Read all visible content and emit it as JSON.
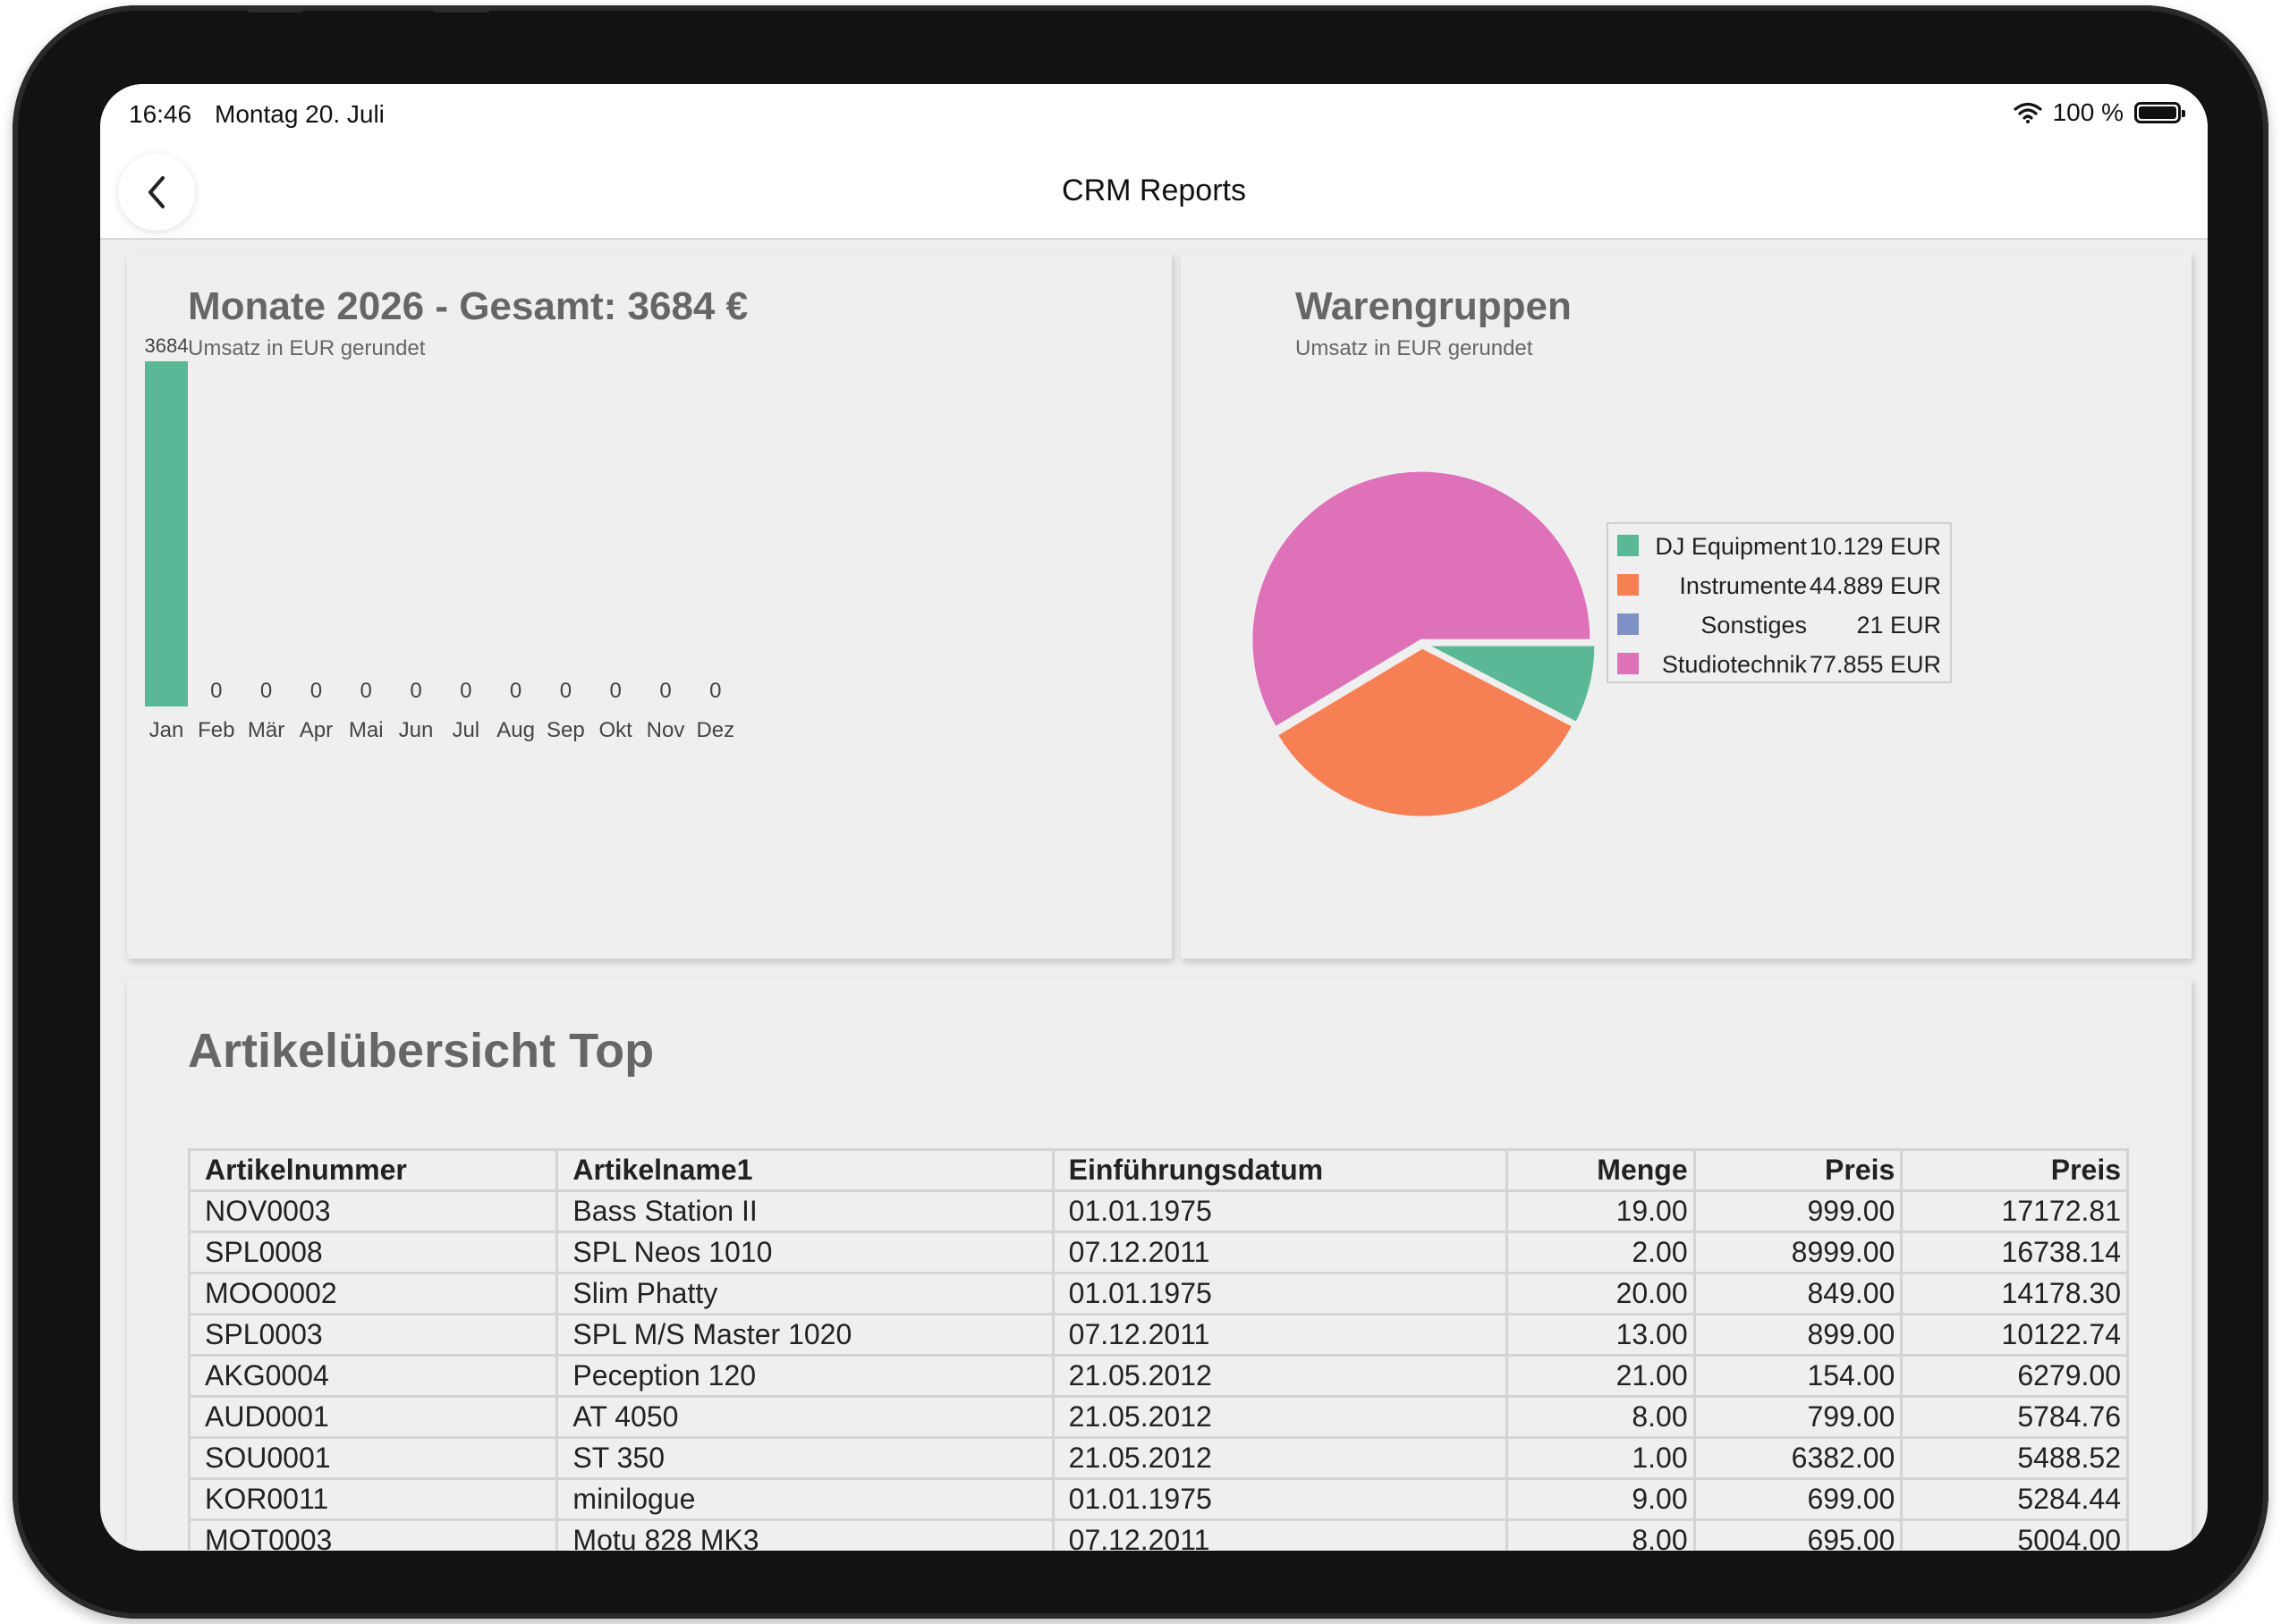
{
  "status_bar": {
    "time": "16:46",
    "date": "Montag 20. Juli",
    "battery": "100 %"
  },
  "nav": {
    "title": "CRM Reports",
    "back_icon": "chevron-left-icon"
  },
  "monthly_card": {
    "title": "Monate 2026 - Gesamt: 3684 €",
    "subtitle": "Umsatz in EUR gerundet"
  },
  "categories_card": {
    "title": "Warengruppen",
    "subtitle": "Umsatz in EUR gerundet"
  },
  "chart_data": [
    {
      "type": "bar",
      "title": "Monate 2026 - Gesamt: 3684 €",
      "subtitle": "Umsatz in EUR gerundet",
      "categories": [
        "Jan",
        "Feb",
        "Mär",
        "Apr",
        "Mai",
        "Jun",
        "Jul",
        "Aug",
        "Sep",
        "Okt",
        "Nov",
        "Dez"
      ],
      "values": [
        3684,
        0,
        0,
        0,
        0,
        0,
        0,
        0,
        0,
        0,
        0,
        0
      ],
      "data_labels": [
        "3684",
        "0",
        "0",
        "0",
        "0",
        "0",
        "0",
        "0",
        "0",
        "0",
        "0",
        "0"
      ],
      "color": "#5ab896",
      "ylim": [
        0,
        3684
      ],
      "grid": false
    },
    {
      "type": "pie",
      "title": "Warengruppen",
      "subtitle": "Umsatz in EUR gerundet",
      "legend_position": "right",
      "slices": [
        {
          "name": "DJ Equipment",
          "value": 10129,
          "label": "10.129 EUR",
          "color": "#5ab896"
        },
        {
          "name": "Instrumente",
          "value": 44889,
          "label": "44.889 EUR",
          "color": "#f77f54"
        },
        {
          "name": "Sonstiges",
          "value": 21,
          "label": "21 EUR",
          "color": "#7f90c6"
        },
        {
          "name": "Studiotechnik",
          "value": 77855,
          "label": "77.855 EUR",
          "color": "#de71b8"
        }
      ]
    }
  ],
  "articles": {
    "title": "Artikelübersicht Top",
    "headers": [
      "Artikelnummer",
      "Artikelname1",
      "Einführungsdatum",
      "Menge",
      "Preis",
      "Preis"
    ],
    "rows": [
      [
        "NOV0003",
        "Bass Station II",
        "01.01.1975",
        "19.00",
        "999.00",
        "17172.81"
      ],
      [
        "SPL0008",
        "SPL Neos 1010",
        "07.12.2011",
        "2.00",
        "8999.00",
        "16738.14"
      ],
      [
        "MOO0002",
        "Slim Phatty",
        "01.01.1975",
        "20.00",
        "849.00",
        "14178.30"
      ],
      [
        "SPL0003",
        "SPL M/S Master 1020",
        "07.12.2011",
        "13.00",
        "899.00",
        "10122.74"
      ],
      [
        "AKG0004",
        "Peception 120",
        "21.05.2012",
        "21.00",
        "154.00",
        "6279.00"
      ],
      [
        "AUD0001",
        "AT 4050",
        "21.05.2012",
        "8.00",
        "799.00",
        "5784.76"
      ],
      [
        "SOU0001",
        "ST 350",
        "21.05.2012",
        "1.00",
        "6382.00",
        "5488.52"
      ],
      [
        "KOR0011",
        "minilogue",
        "01.01.1975",
        "9.00",
        "699.00",
        "5284.44"
      ],
      [
        "MOT0003",
        "Motu 828 MK3",
        "07.12.2011",
        "8.00",
        "695.00",
        "5004.00"
      ]
    ]
  }
}
